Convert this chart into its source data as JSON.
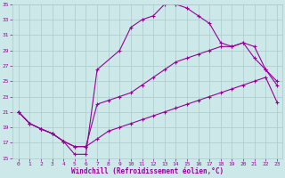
{
  "xlabel": "Windchill (Refroidissement éolien,°C)",
  "bg_color": "#cce8e8",
  "grid_color": "#aacccc",
  "line_color": "#990099",
  "xlim": [
    -0.5,
    23.5
  ],
  "ylim": [
    15,
    35
  ],
  "yticks": [
    15,
    17,
    19,
    21,
    23,
    25,
    27,
    29,
    31,
    33,
    35
  ],
  "xticks": [
    0,
    1,
    2,
    3,
    4,
    5,
    6,
    7,
    8,
    9,
    10,
    11,
    12,
    13,
    14,
    15,
    16,
    17,
    18,
    19,
    20,
    21,
    22,
    23
  ],
  "series": [
    {
      "x": [
        0,
        1,
        2,
        3,
        4,
        5,
        6,
        7,
        8,
        9,
        10,
        11,
        12,
        13,
        14,
        15,
        16,
        17,
        18,
        19,
        20,
        21,
        22,
        23
      ],
      "y": [
        21.0,
        19.5,
        18.8,
        18.2,
        17.2,
        16.5,
        16.5,
        17.5,
        18.5,
        19.0,
        19.5,
        20.0,
        20.5,
        21.0,
        21.5,
        22.0,
        22.5,
        23.0,
        23.5,
        24.0,
        24.5,
        25.0,
        25.5,
        22.3
      ]
    },
    {
      "x": [
        0,
        1,
        2,
        3,
        4,
        5,
        6,
        7,
        8,
        9,
        10,
        11,
        12,
        13,
        14,
        15,
        16,
        17,
        18,
        19,
        20,
        21,
        22,
        23
      ],
      "y": [
        21.0,
        19.5,
        18.8,
        18.2,
        17.2,
        16.5,
        16.5,
        22.0,
        22.5,
        23.0,
        23.5,
        24.5,
        25.5,
        26.5,
        27.5,
        28.0,
        28.5,
        29.0,
        29.5,
        29.5,
        30.0,
        28.0,
        26.5,
        25.0
      ]
    },
    {
      "x": [
        0,
        1,
        2,
        3,
        4,
        5,
        6,
        7,
        9,
        10,
        11,
        12,
        13,
        14,
        15,
        16,
        17,
        18,
        19,
        20,
        21,
        22,
        23
      ],
      "y": [
        21.0,
        19.5,
        18.8,
        18.2,
        17.2,
        15.5,
        15.5,
        26.5,
        29.0,
        32.0,
        33.0,
        33.5,
        35.0,
        35.0,
        34.5,
        33.5,
        32.5,
        30.0,
        29.5,
        30.0,
        29.5,
        26.5,
        24.5
      ]
    }
  ]
}
